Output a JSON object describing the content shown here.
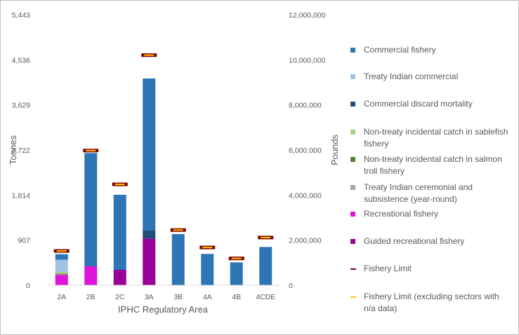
{
  "chart_data": {
    "type": "bar",
    "stacked": true,
    "title": "",
    "xlabel": "IPHC Regulatory Area",
    "ylabel": "Tonnes",
    "y2label": "Pounds",
    "categories": [
      "2A",
      "2B",
      "2C",
      "3A",
      "3B",
      "4A",
      "4B",
      "4CDE"
    ],
    "ylim": [
      0,
      5443
    ],
    "yticks": [
      "0",
      "907",
      "1,814",
      "2,722",
      "3,629",
      "4,536",
      "5,443"
    ],
    "y2ticks": [
      "0",
      "2,000,000",
      "4,000,000",
      "6,000,000",
      "8,000,000",
      "10,000,000",
      "12,000,000"
    ],
    "series": [
      {
        "name": "Commercial fishery",
        "color": "#2e75b6",
        "values": [
          110,
          2280,
          1510,
          3060,
          1030,
          630,
          460,
          770
        ]
      },
      {
        "name": "Treaty Indian commercial",
        "color": "#9dc3e6",
        "values": [
          245,
          0,
          0,
          0,
          0,
          0,
          0,
          0
        ]
      },
      {
        "name": "Commercial discard mortality",
        "color": "#1f4e79",
        "values": [
          0,
          0,
          0,
          160,
          0,
          0,
          0,
          0
        ]
      },
      {
        "name": "Non-treaty incidental catch in sablefish fishery",
        "color": "#a9d18e",
        "values": [
          35,
          0,
          0,
          0,
          0,
          0,
          0,
          0
        ]
      },
      {
        "name": "Non-treaty incidental catch in salmon troll fishery",
        "color": "#548235",
        "values": [
          15,
          0,
          0,
          0,
          0,
          0,
          0,
          0
        ]
      },
      {
        "name": "Treaty Indian ceremonial and subsistence (year-round)",
        "color": "#a5a5a5",
        "values": [
          10,
          0,
          0,
          0,
          0,
          0,
          0,
          0
        ]
      },
      {
        "name": "Recreational fishery",
        "color": "#dc14dc",
        "values": [
          210,
          380,
          0,
          0,
          0,
          0,
          0,
          0
        ]
      },
      {
        "name": "Guided recreational fishery",
        "color": "#990099",
        "values": [
          0,
          0,
          310,
          940,
          0,
          0,
          0,
          0
        ]
      }
    ],
    "limits": [
      {
        "name": "Fishery Limit",
        "color": "#7f0000",
        "values": [
          690,
          2710,
          2030,
          4630,
          1110,
          760,
          540,
          960
        ]
      },
      {
        "name": "Fishery Limit (excluding sectors with n/a data)",
        "color": "#ffc000",
        "values": [
          690,
          2710,
          2030,
          4630,
          1110,
          760,
          540,
          960
        ]
      }
    ],
    "legend": "right",
    "grid": false
  }
}
